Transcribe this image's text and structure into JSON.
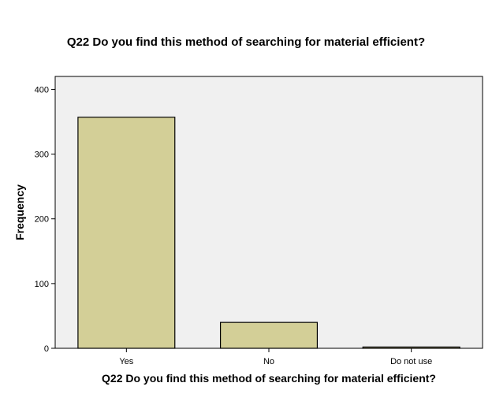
{
  "chart_data": {
    "type": "bar",
    "title": "Q22 Do you find this method of searching for material efficient?",
    "xlabel": "Q22 Do you find this method of searching for material efficient?",
    "ylabel": "Frequency",
    "categories": [
      "Yes",
      "No",
      "Do not use"
    ],
    "values": [
      357,
      40,
      2
    ],
    "ylim": [
      0,
      420
    ],
    "yticks": [
      0,
      100,
      200,
      300,
      400
    ],
    "grid": false,
    "legend": "none",
    "colors": {
      "bar_fill": "#d3cf97",
      "bar_stroke": "#000000",
      "plot_background": "#f0f0f0"
    }
  }
}
